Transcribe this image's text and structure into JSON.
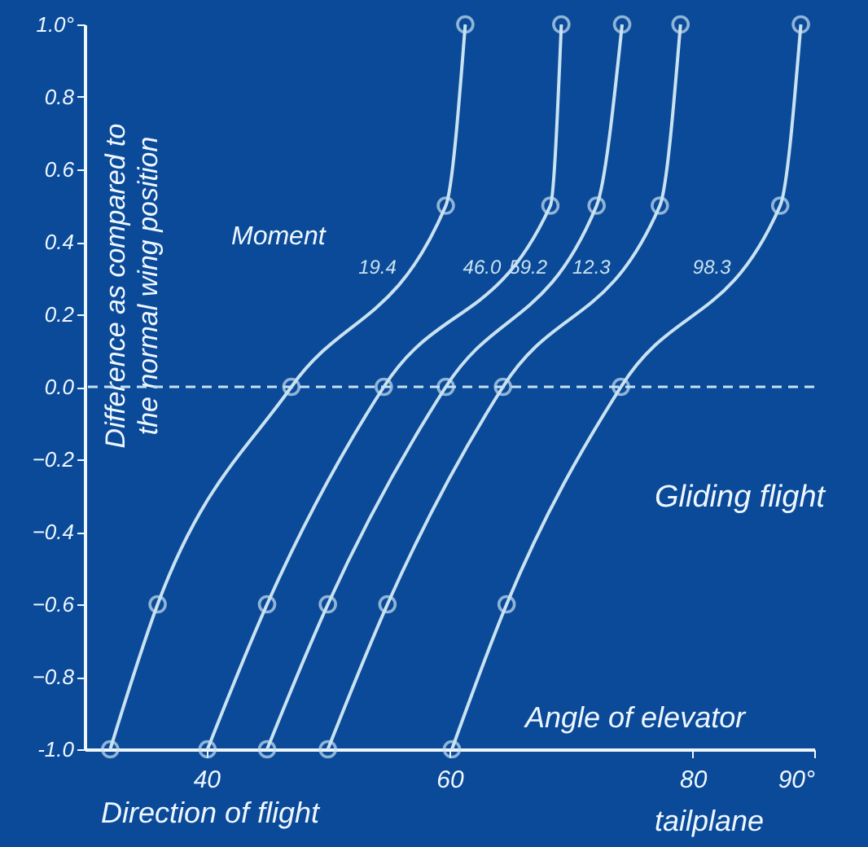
{
  "chart_data": {
    "type": "line",
    "ylabel": "Difference as compared to the normal wing position",
    "xlabel": "Angle of elevator",
    "series": [
      {
        "name": "19.4",
        "color": "#c8e2f2",
        "x": [
          32.1,
          36.0,
          47.0,
          59.7,
          61.3
        ],
        "values": [
          -1.0,
          -0.6,
          0.0,
          0.5,
          1.0
        ]
      },
      {
        "name": "46.0",
        "color": "#c8e2f2",
        "x": [
          40.1,
          45.0,
          54.6,
          68.3,
          69.2
        ],
        "values": [
          -1.0,
          -0.6,
          0.0,
          0.5,
          1.0
        ]
      },
      {
        "name": "59.2",
        "color": "#c8e2f2",
        "x": [
          45.0,
          50.0,
          59.7,
          72.1,
          74.2
        ],
        "values": [
          -1.0,
          -0.6,
          0.0,
          0.5,
          1.0
        ]
      },
      {
        "name": "12.3",
        "color": "#c8e2f2",
        "x": [
          50.0,
          54.9,
          64.4,
          77.3,
          79.0
        ],
        "values": [
          -1.0,
          -0.6,
          0.0,
          0.5,
          1.0
        ]
      },
      {
        "name": "98.3",
        "color": "#c8e2f2",
        "x": [
          60.2,
          64.7,
          74.1,
          87.2,
          88.9
        ],
        "values": [
          -1.0,
          -0.6,
          0.0,
          0.5,
          1.0
        ]
      }
    ],
    "xlim": [
      30,
      90
    ],
    "xticks": [
      40,
      60,
      80,
      {
        "value": 90,
        "label": "90°"
      }
    ],
    "ylim": [
      -1.0,
      1.0
    ],
    "yticks": [
      {
        "value": 1.0,
        "label": "1.0°"
      },
      0.8,
      0.6,
      0.4,
      0.2,
      {
        "value": 0,
        "label": "0.0"
      },
      -0.2,
      -0.4,
      -0.6,
      -0.8,
      {
        "value": -1.0,
        "label": "-1.0"
      }
    ],
    "ref_lines": [
      {
        "axis": "y",
        "value": 0,
        "color": "#c8e2f2",
        "line_style": "dashed"
      }
    ],
    "annotations": [
      "Moment",
      "Gliding flight",
      "Direction of flight",
      "tailplane"
    ],
    "marker": "circle",
    "line_style": "solid",
    "grid": false
  }
}
